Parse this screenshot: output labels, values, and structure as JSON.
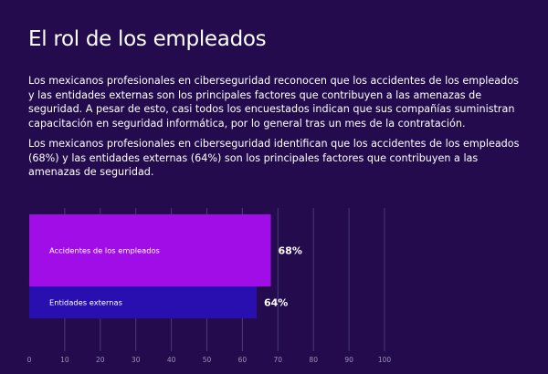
{
  "title": "El rol de los empleados",
  "paragraphs": [
    "Los mexicanos profesionales en ciberseguridad reconocen que los accidentes de los empleados y las entidades externas son los principales factores que contribuyen a las amenazas de seguridad. A pesar de esto, casi todos los encuestados indican que sus compañías suministran capacitación en seguridad informática, por lo general tras un mes de la contratación.",
    "Los mexicanos profesionales en ciberseguridad identifican que los accidentes de los empleados (68%) y las entidades externas (64%) son los principales factores que contribuyen a las amenazas de seguridad."
  ],
  "colors": {
    "background": "#240B4D",
    "bar_1": "#A10DE6",
    "bar_2": "#2A0FB0",
    "grid": "#4A3A75",
    "tick_text": "#9C92BB"
  },
  "chart_data": {
    "type": "bar",
    "orientation": "horizontal",
    "categories": [
      "Accidentes de los empleados",
      "Entidades externas"
    ],
    "values": [
      68,
      64
    ],
    "value_labels": [
      "68%",
      "64%"
    ],
    "xlim": [
      0,
      100
    ],
    "xticks": [
      0,
      10,
      20,
      30,
      40,
      50,
      60,
      70,
      80,
      90,
      100
    ],
    "grid": true
  }
}
